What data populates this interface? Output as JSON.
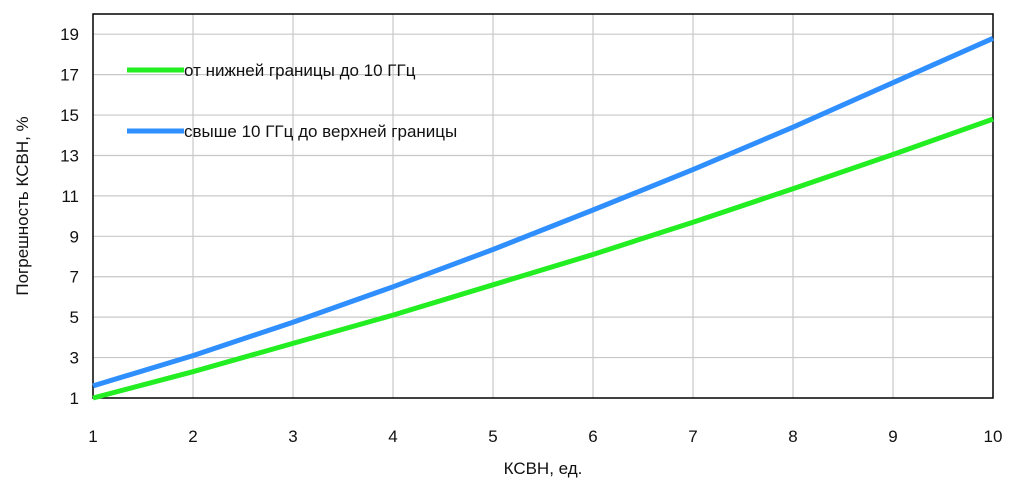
{
  "chart_data": {
    "type": "line",
    "title": "",
    "xlabel": "КСВН, ед.",
    "ylabel": "Погрешность КСВН, %",
    "xlim": [
      1,
      10
    ],
    "ylim": [
      1,
      20
    ],
    "xticks": [
      1,
      2,
      3,
      4,
      5,
      6,
      7,
      8,
      9,
      10
    ],
    "yticks": [
      1,
      3,
      5,
      7,
      9,
      11,
      13,
      15,
      17,
      19
    ],
    "grid": true,
    "legend_position": "top-left",
    "series": [
      {
        "name": "от нижней границы до 10 ГГц",
        "color": "#22ee22",
        "x": [
          1,
          2,
          3,
          4,
          5,
          6,
          7,
          8,
          9,
          10
        ],
        "y": [
          1.0,
          2.3,
          3.7,
          5.1,
          6.6,
          8.1,
          9.7,
          11.35,
          13.05,
          14.8
        ]
      },
      {
        "name": "свыше 10 ГГц до верхней границы",
        "color": "#2f8fff",
        "x": [
          1,
          2,
          3,
          4,
          5,
          6,
          7,
          8,
          9,
          10
        ],
        "y": [
          1.6,
          3.1,
          4.75,
          6.5,
          8.35,
          10.3,
          12.3,
          14.4,
          16.6,
          18.8
        ]
      }
    ]
  }
}
